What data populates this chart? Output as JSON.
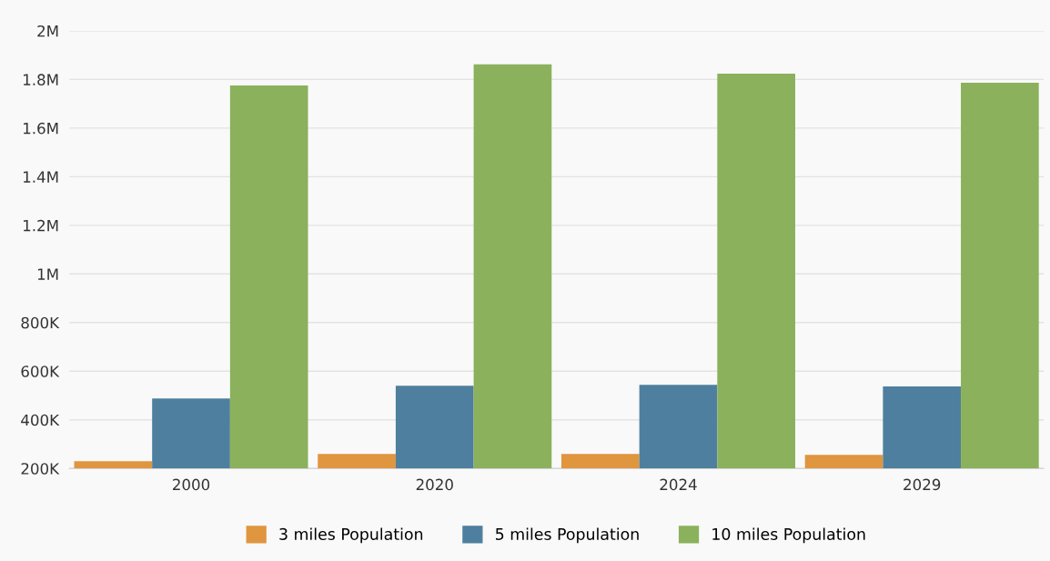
{
  "chart_data": {
    "type": "bar",
    "categories": [
      "2000",
      "2020",
      "2024",
      "2029"
    ],
    "series": [
      {
        "name": "3 miles Population",
        "color": "#e0953f",
        "values": [
          230000,
          260000,
          260000,
          256000
        ]
      },
      {
        "name": "5 miles Population",
        "color": "#4e7f9e",
        "values": [
          488000,
          540000,
          544000,
          537000
        ]
      },
      {
        "name": "10 miles Population",
        "color": "#8bb15c",
        "values": [
          1775000,
          1862000,
          1824000,
          1787000
        ]
      }
    ],
    "ylim": [
      200000,
      2000000
    ],
    "yticks": [
      {
        "value": 200000,
        "label": "200K"
      },
      {
        "value": 400000,
        "label": "400K"
      },
      {
        "value": 600000,
        "label": "600K"
      },
      {
        "value": 800000,
        "label": "800K"
      },
      {
        "value": 1000000,
        "label": "1M"
      },
      {
        "value": 1200000,
        "label": "1.2M"
      },
      {
        "value": 1400000,
        "label": "1.4M"
      },
      {
        "value": 1600000,
        "label": "1.6M"
      },
      {
        "value": 1800000,
        "label": "1.8M"
      },
      {
        "value": 2000000,
        "label": "2M"
      }
    ],
    "grid": "y",
    "legend": "bottom"
  }
}
